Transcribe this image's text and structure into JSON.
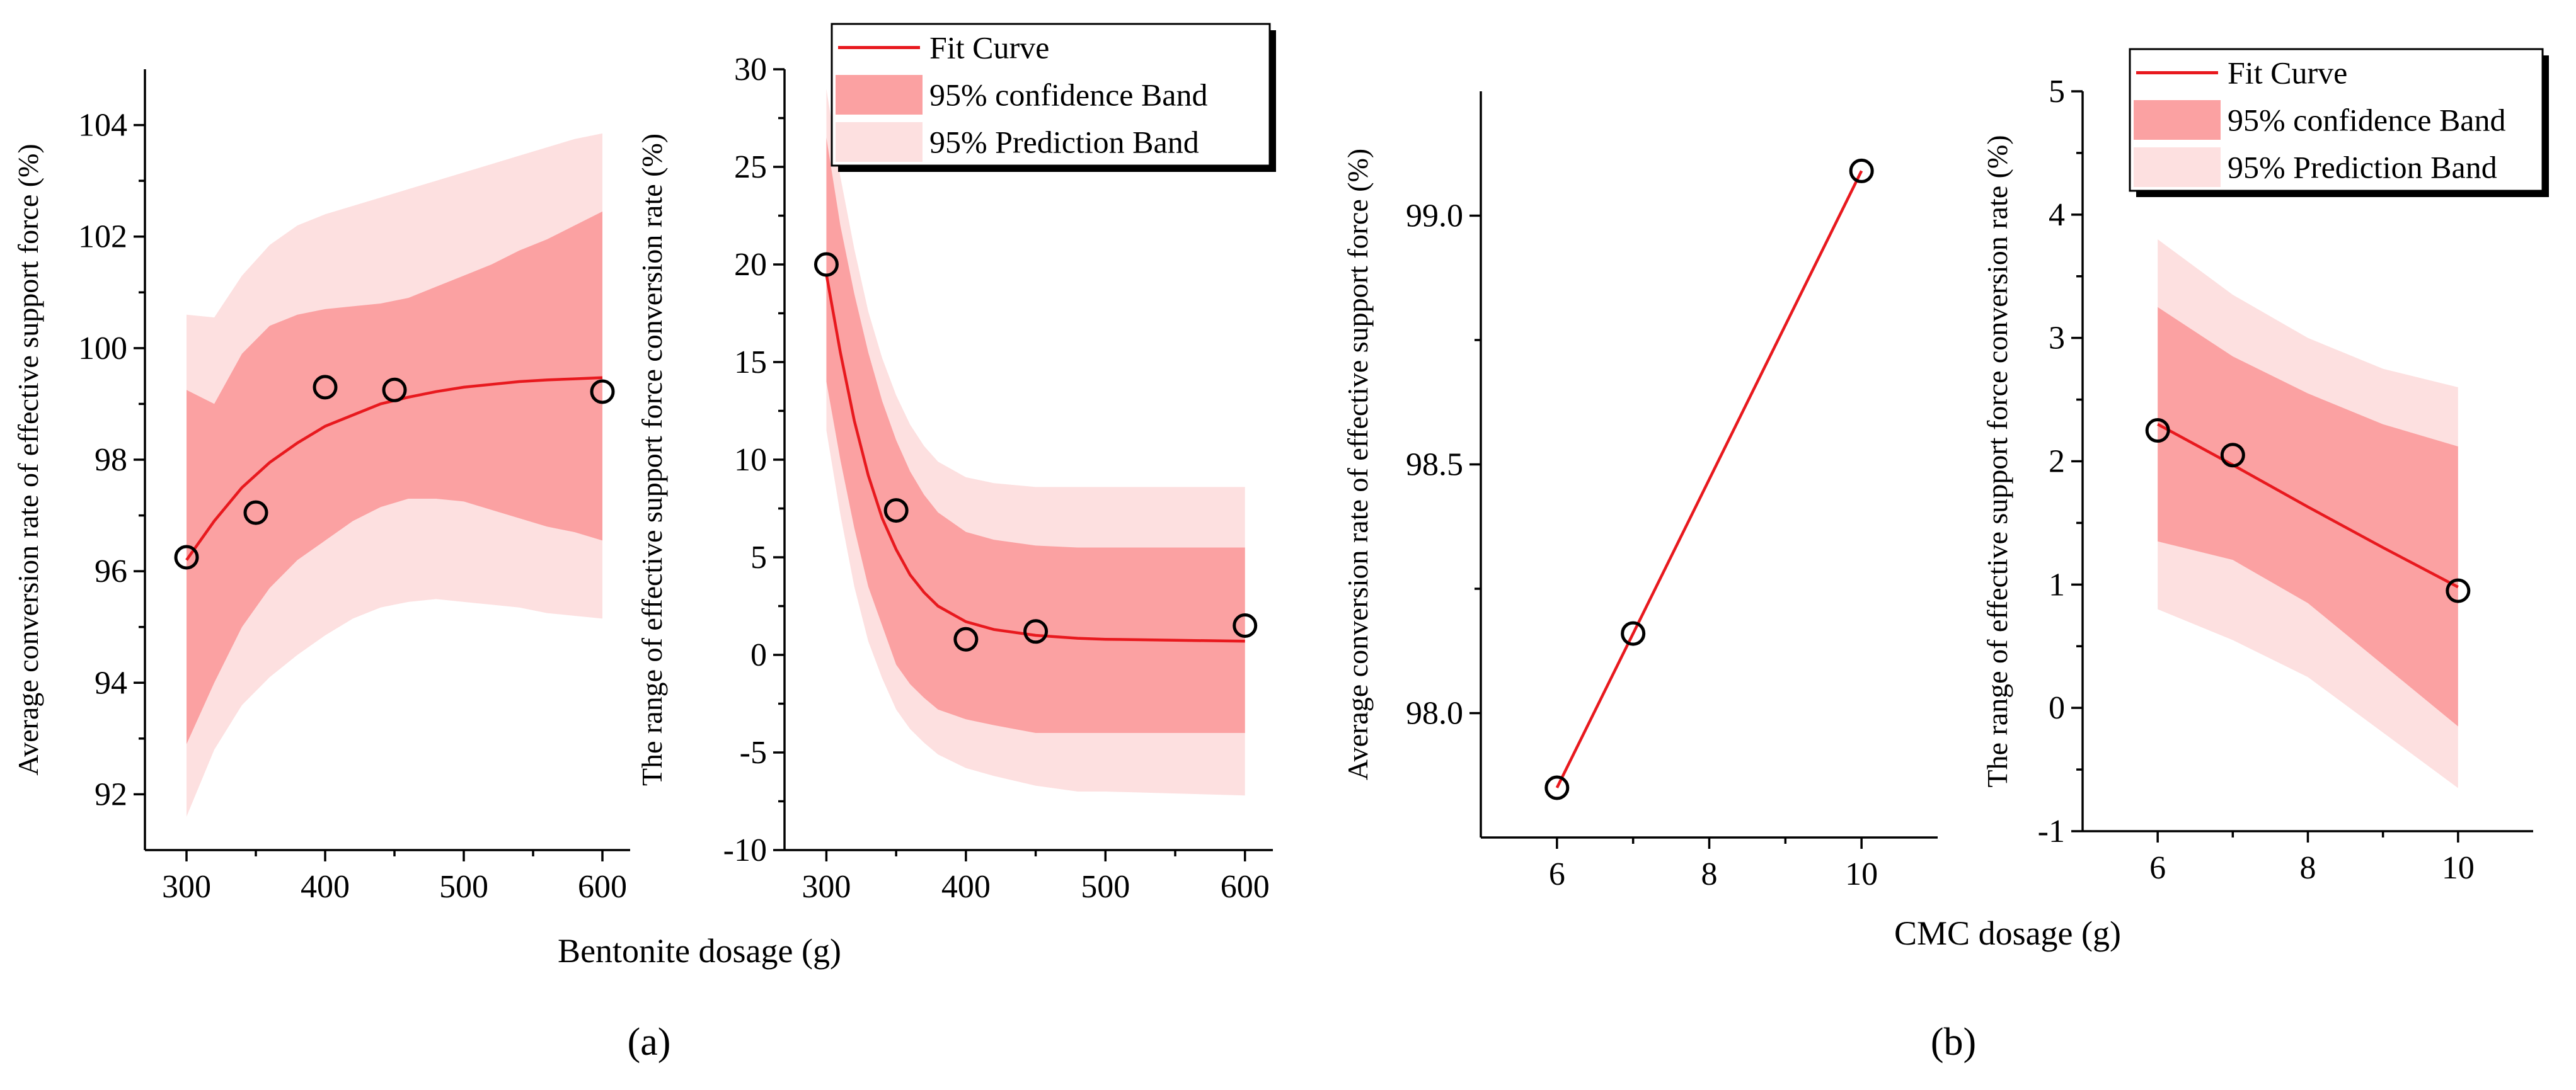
{
  "colors": {
    "fit_curve": "#e8191e",
    "confidence_band": "#fba1a2",
    "prediction_band": "#fde0e0",
    "points": "#000000"
  },
  "figure": {
    "label_a": "(a)",
    "label_b": "(b)",
    "xlabel_a": "Bentonite dosage (g)",
    "xlabel_b": "CMC dosage (g)"
  },
  "chart_data": [
    {
      "id": "a1",
      "type": "scatter",
      "ylabel": "Average conversion rate of effective support force (%)",
      "x": [
        300,
        350,
        400,
        450,
        600
      ],
      "y": [
        96.25,
        97.05,
        99.3,
        99.25,
        99.22
      ],
      "xlim": [
        270,
        620
      ],
      "ylim": [
        91,
        105
      ],
      "xticks": [
        300,
        400,
        500,
        600
      ],
      "yticks": [
        92,
        94,
        96,
        98,
        100,
        102,
        104
      ],
      "fit": {
        "x": [
          300,
          320,
          340,
          360,
          380,
          400,
          420,
          440,
          460,
          480,
          500,
          520,
          540,
          560,
          580,
          600
        ],
        "y": [
          96.2,
          96.9,
          97.5,
          97.95,
          98.3,
          98.6,
          98.8,
          99.0,
          99.12,
          99.22,
          99.3,
          99.35,
          99.4,
          99.43,
          99.45,
          99.47
        ],
        "ci_upper": [
          99.25,
          99.0,
          99.9,
          100.4,
          100.6,
          100.7,
          100.75,
          100.8,
          100.9,
          101.1,
          101.3,
          101.5,
          101.75,
          101.95,
          102.2,
          102.45
        ],
        "ci_lower": [
          92.9,
          94.0,
          95.0,
          95.7,
          96.2,
          96.55,
          96.9,
          97.15,
          97.3,
          97.3,
          97.25,
          97.1,
          96.95,
          96.8,
          96.7,
          96.55
        ],
        "pi_upper": [
          100.6,
          100.55,
          101.3,
          101.85,
          102.2,
          102.4,
          102.55,
          102.7,
          102.85,
          103.0,
          103.15,
          103.3,
          103.45,
          103.6,
          103.75,
          103.85
        ],
        "pi_lower": [
          91.6,
          92.8,
          93.6,
          94.1,
          94.5,
          94.85,
          95.15,
          95.35,
          95.45,
          95.5,
          95.45,
          95.4,
          95.35,
          95.25,
          95.2,
          95.15
        ]
      }
    },
    {
      "id": "a2",
      "type": "scatter",
      "ylabel": "The range of effective support force conversion rate (%)",
      "x": [
        300,
        350,
        400,
        450,
        600
      ],
      "y": [
        20.0,
        7.4,
        0.8,
        1.2,
        1.5
      ],
      "xlim": [
        270,
        620
      ],
      "ylim": [
        -10,
        30
      ],
      "xticks": [
        300,
        400,
        500,
        600
      ],
      "yticks": [
        -10,
        -5,
        0,
        5,
        10,
        15,
        20,
        25,
        30
      ],
      "legend": {
        "position": "top-right",
        "entries": [
          "Fit Curve",
          "95% confidence Band",
          "95% Prediction Band"
        ]
      },
      "fit": {
        "x": [
          300,
          310,
          320,
          330,
          340,
          350,
          360,
          370,
          380,
          400,
          420,
          450,
          480,
          500,
          550,
          600
        ],
        "y": [
          19.5,
          15.5,
          12.0,
          9.2,
          7.0,
          5.4,
          4.1,
          3.2,
          2.5,
          1.7,
          1.3,
          1.0,
          0.85,
          0.8,
          0.75,
          0.7
        ],
        "ci_upper": [
          26.5,
          22.0,
          18.5,
          15.5,
          13.0,
          11.0,
          9.4,
          8.2,
          7.3,
          6.3,
          5.9,
          5.6,
          5.5,
          5.5,
          5.5,
          5.5
        ],
        "ci_lower": [
          14.0,
          10.0,
          6.5,
          3.5,
          1.5,
          -0.5,
          -1.5,
          -2.2,
          -2.8,
          -3.3,
          -3.6,
          -4.0,
          -4.0,
          -4.0,
          -4.0,
          -4.0
        ],
        "pi_upper": [
          29.0,
          24.5,
          20.8,
          17.6,
          15.2,
          13.3,
          11.8,
          10.7,
          9.9,
          9.1,
          8.8,
          8.6,
          8.6,
          8.6,
          8.6,
          8.6
        ],
        "pi_lower": [
          11.5,
          7.2,
          3.5,
          0.7,
          -1.2,
          -2.8,
          -3.8,
          -4.5,
          -5.1,
          -5.8,
          -6.2,
          -6.7,
          -7.0,
          -7.0,
          -7.1,
          -7.2
        ]
      }
    },
    {
      "id": "b1",
      "type": "line",
      "ylabel": "Average conversion rate of effective support force (%)",
      "x": [
        6,
        7,
        10
      ],
      "y": [
        97.85,
        98.16,
        99.09
      ],
      "xlim": [
        5,
        11
      ],
      "ylim": [
        97.75,
        99.25
      ],
      "xticks": [
        6,
        8,
        10
      ],
      "yticks": [
        98.0,
        98.5,
        99.0
      ],
      "ytick_labels": [
        "98.0",
        "98.5",
        "99.0"
      ]
    },
    {
      "id": "b2",
      "type": "scatter",
      "ylabel": "The range of effective support force conversion rate (%)",
      "x": [
        6,
        7,
        10
      ],
      "y": [
        2.25,
        2.05,
        0.95
      ],
      "xlim": [
        5,
        11
      ],
      "ylim": [
        -1,
        5
      ],
      "xticks": [
        6,
        8,
        10
      ],
      "yticks": [
        -1,
        0,
        1,
        2,
        3,
        4,
        5
      ],
      "legend": {
        "position": "top-right",
        "entries": [
          "Fit Curve",
          "95% confidence Band",
          "95% Prediction Band"
        ]
      },
      "fit": {
        "x": [
          6,
          7,
          8,
          9,
          10
        ],
        "y": [
          2.3,
          1.97,
          1.63,
          1.3,
          0.98
        ],
        "ci_upper": [
          3.25,
          2.85,
          2.55,
          2.3,
          2.12
        ],
        "ci_lower": [
          1.35,
          1.2,
          0.85,
          0.35,
          -0.15
        ],
        "pi_upper": [
          3.8,
          3.35,
          3.0,
          2.75,
          2.6
        ],
        "pi_lower": [
          0.8,
          0.55,
          0.25,
          -0.2,
          -0.65
        ]
      }
    }
  ]
}
